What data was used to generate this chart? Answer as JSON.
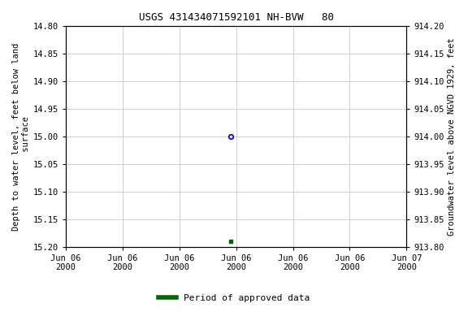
{
  "title": "USGS 431434071592101 NH-BVW   80",
  "ylabel_left": "Depth to water level, feet below land\n surface",
  "ylabel_right": "Groundwater level above NGVD 1929, feet",
  "ylim_left": [
    15.2,
    14.8
  ],
  "ylim_right": [
    913.8,
    914.2
  ],
  "yticks_left": [
    14.8,
    14.85,
    14.9,
    14.95,
    15.0,
    15.05,
    15.1,
    15.15,
    15.2
  ],
  "yticks_right": [
    913.8,
    913.85,
    913.9,
    913.95,
    914.0,
    914.05,
    914.1,
    914.15,
    914.2
  ],
  "point_open_value": 15.0,
  "point_filled_value": 15.19,
  "open_color": "#0000cc",
  "filled_color": "#006400",
  "legend_label": "Period of approved data",
  "legend_color": "#006400",
  "background_color": "#ffffff",
  "grid_color": "#c8c8c8",
  "title_fontsize": 9,
  "axis_label_fontsize": 7.5,
  "tick_fontsize": 7.5,
  "xaxis_start_day": 0,
  "xaxis_end_day": 31,
  "point_open_day": 15,
  "point_filled_day": 15,
  "num_xticks": 7,
  "xtick_labels": [
    "Jun 06\n2000",
    "Jun 06\n2000",
    "Jun 06\n2000",
    "Jun 06\n2000",
    "Jun 06\n2000",
    "Jun 06\n2000",
    "Jun 07\n2000"
  ]
}
